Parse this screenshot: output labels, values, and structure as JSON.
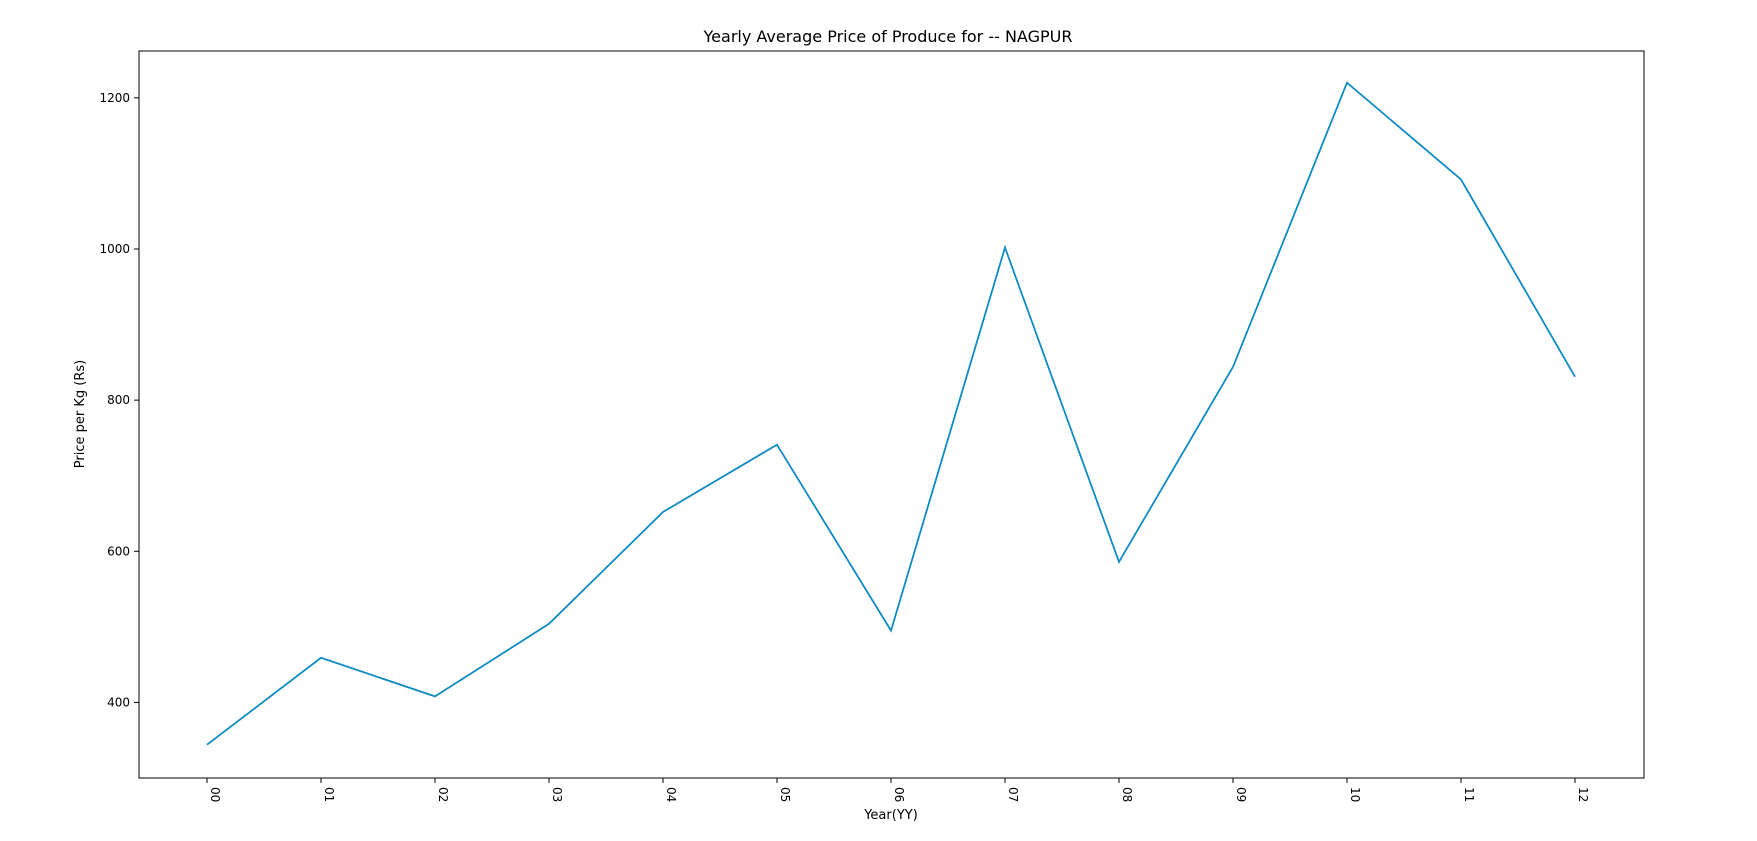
{
  "chart_data": {
    "type": "line",
    "title": "Yearly Average Price of Produce for  --  NAGPUR",
    "xlabel": "Year(YY)",
    "ylabel": "Price per Kg (Rs)",
    "categories": [
      "00",
      "01",
      "02",
      "03",
      "04",
      "05",
      "06",
      "07",
      "08",
      "09",
      "10",
      "11",
      "12"
    ],
    "series": [
      {
        "color": "#0e8bc2",
        "values": [
          344,
          459,
          408,
          504,
          652,
          741,
          495,
          1002,
          586,
          844,
          1220,
          1092,
          831
        ]
      }
    ],
    "yticks": [
      400,
      600,
      800,
      1000,
      1200
    ],
    "ylim": [
      300,
      1262
    ],
    "grid": false,
    "legend": "none"
  }
}
